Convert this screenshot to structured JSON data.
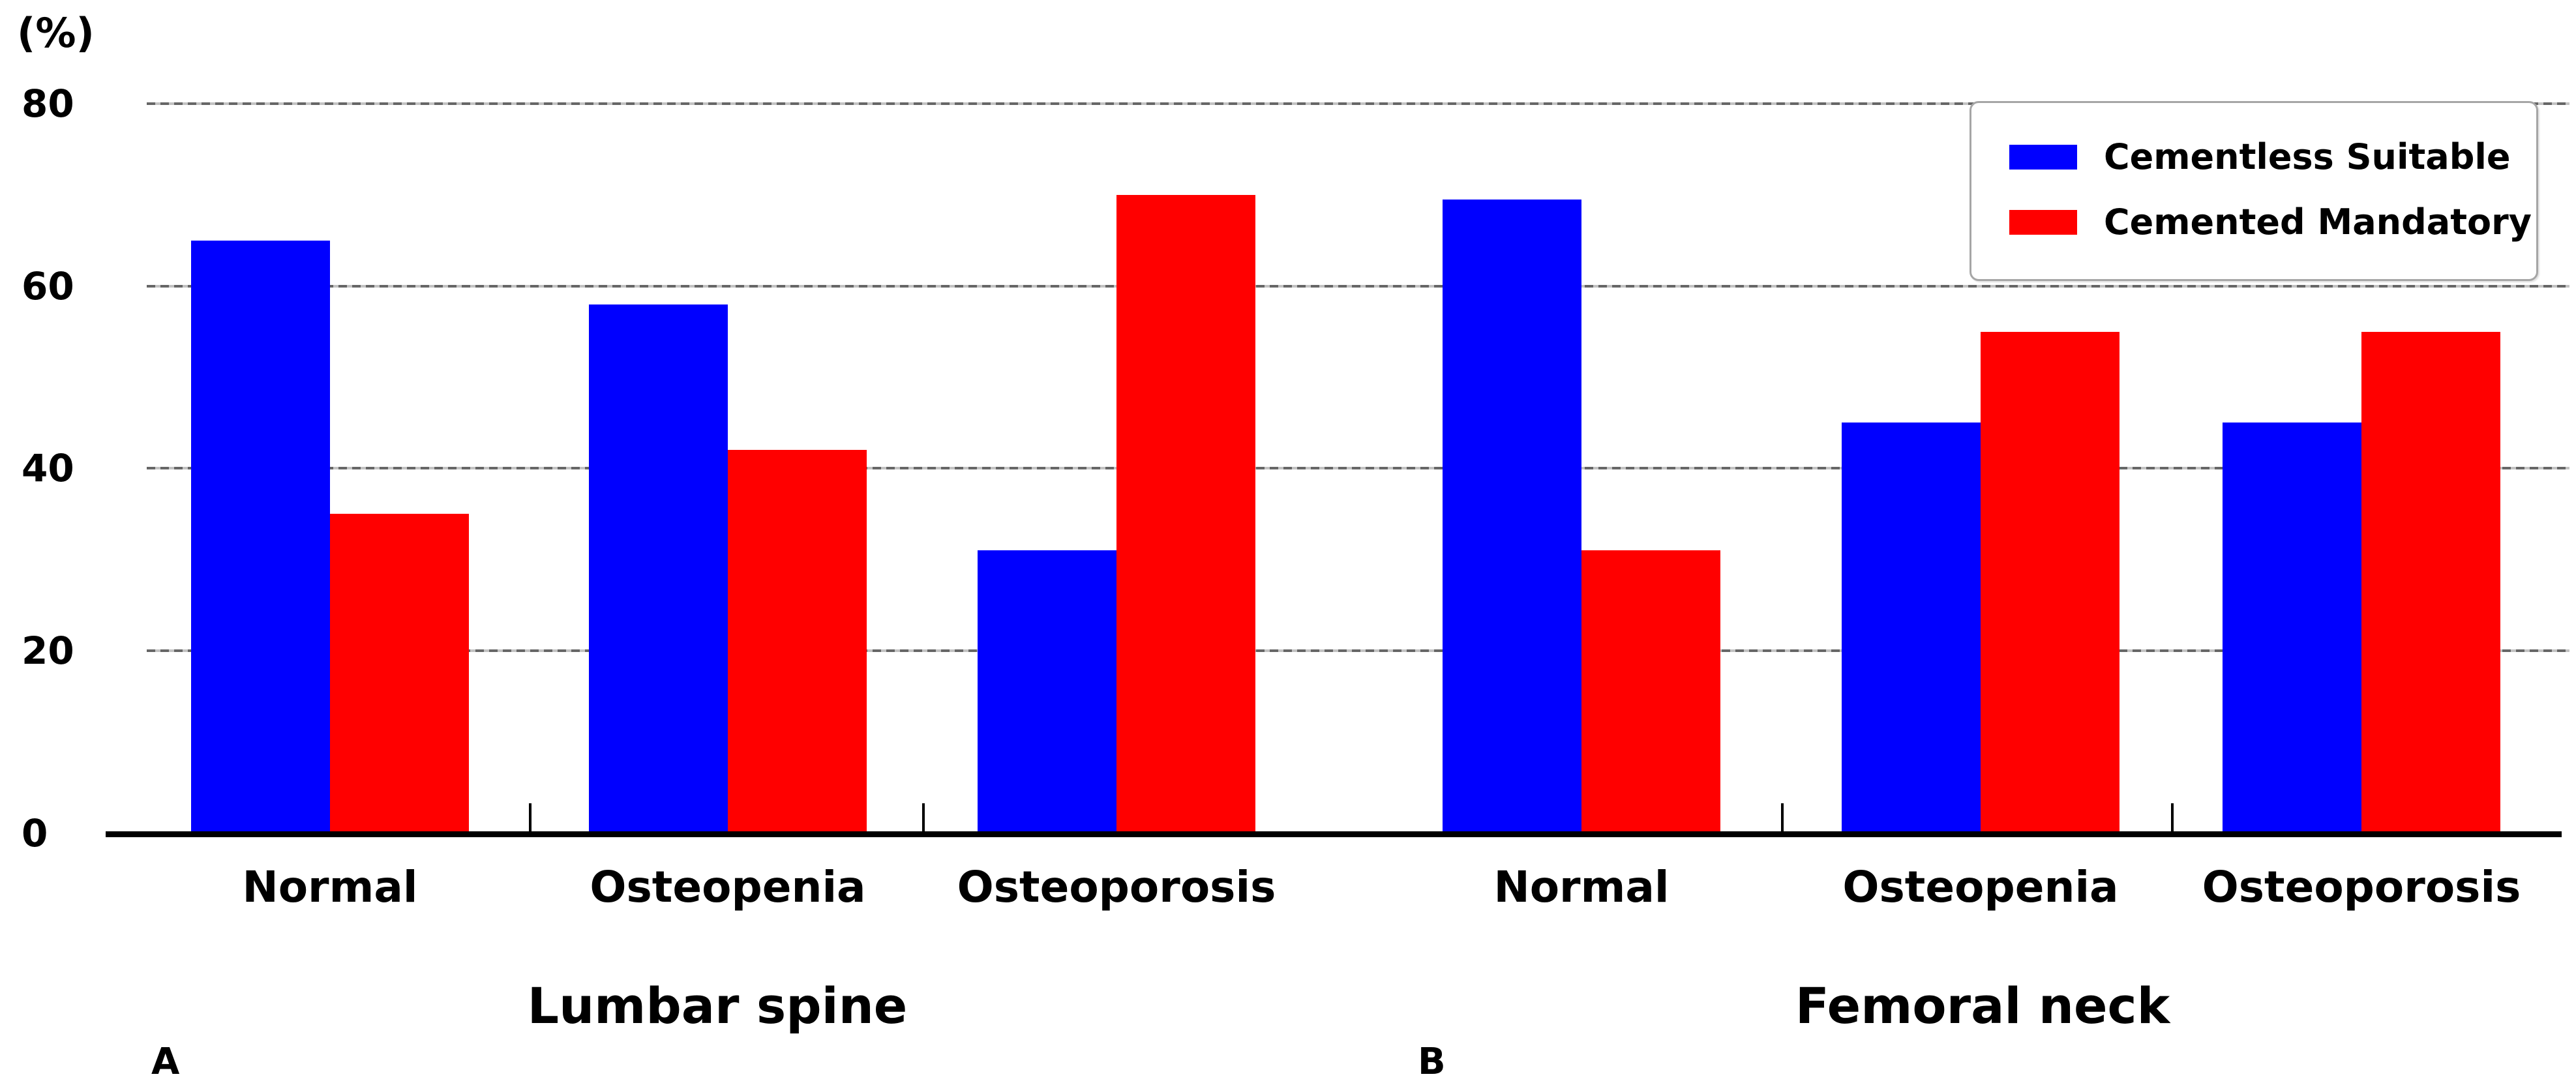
{
  "figure": {
    "y_axis_unit_label": "(%)",
    "yticks": [
      0,
      20,
      40,
      60,
      80
    ],
    "panels": [
      {
        "tag": "A",
        "title": "Lumbar spine"
      },
      {
        "tag": "B",
        "title": "Femoral neck"
      }
    ],
    "legend": {
      "position": "upper right",
      "entries": [
        {
          "label": "Cementless Suitable",
          "color": "#0000ff"
        },
        {
          "label": "Cemented Mandatory",
          "color": "#ff0000"
        }
      ]
    },
    "colors": {
      "bar_blue": "#0000ff",
      "bar_red": "#ff0000",
      "gridline": "#888888",
      "axis": "#000000"
    }
  },
  "chart_data": [
    {
      "type": "bar",
      "panel": "A",
      "title": "Lumbar spine",
      "categories": [
        "Normal",
        "Osteopenia",
        "Osteoporosis"
      ],
      "series": [
        {
          "name": "Cementless Suitable",
          "color": "#0000ff",
          "values": [
            65,
            58,
            31
          ]
        },
        {
          "name": "Cemented Mandatory",
          "color": "#ff0000",
          "values": [
            35,
            42,
            70
          ]
        }
      ],
      "xlabel": "",
      "ylabel": "(%)",
      "ylim": [
        0,
        80
      ],
      "grid": true,
      "legend_position": "upper right"
    },
    {
      "type": "bar",
      "panel": "B",
      "title": "Femoral neck",
      "categories": [
        "Normal",
        "Osteopenia",
        "Osteoporosis"
      ],
      "series": [
        {
          "name": "Cementless Suitable",
          "color": "#0000ff",
          "values": [
            69.5,
            45,
            45
          ]
        },
        {
          "name": "Cemented Mandatory",
          "color": "#ff0000",
          "values": [
            31,
            55,
            55
          ]
        }
      ],
      "xlabel": "",
      "ylabel": "(%)",
      "ylim": [
        0,
        80
      ],
      "grid": true,
      "legend_position": "upper right"
    }
  ]
}
